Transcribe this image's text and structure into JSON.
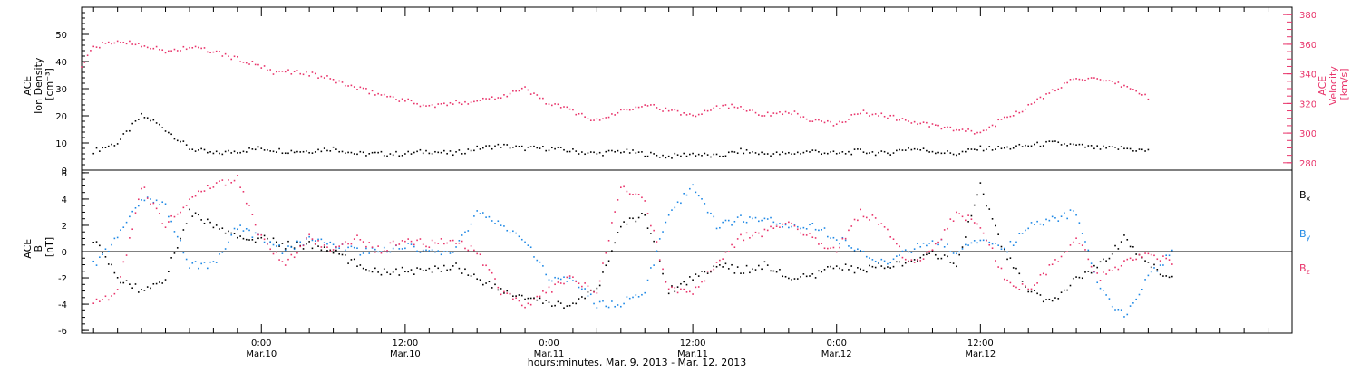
{
  "chart_data": [
    {
      "type": "scatter",
      "panel": "plasma",
      "y_label_lines": [
        "ACE",
        "Ion Density",
        "[cm⁻³]"
      ],
      "y2_label_lines": [
        "ACE",
        "Velocity",
        "[km/s]"
      ],
      "ylim": [
        0,
        60
      ],
      "yticks": [
        0,
        10,
        20,
        30,
        40,
        50
      ],
      "y2lim": [
        275,
        385
      ],
      "y2ticks": [
        280,
        300,
        320,
        340,
        360,
        380
      ],
      "series": [
        {
          "axis": "left",
          "color": "#000000",
          "points": [
            [
              -14,
              7
            ],
            [
              -12,
              10
            ],
            [
              -10,
              20
            ],
            [
              -9,
              18
            ],
            [
              -8,
              15
            ],
            [
              -6,
              8
            ],
            [
              -4,
              6
            ],
            [
              -2,
              7
            ],
            [
              0,
              8
            ],
            [
              2,
              7
            ],
            [
              4,
              7
            ],
            [
              6,
              8
            ],
            [
              8,
              6
            ],
            [
              10,
              6
            ],
            [
              12,
              6
            ],
            [
              14,
              7
            ],
            [
              16,
              6
            ],
            [
              18,
              8
            ],
            [
              20,
              9
            ],
            [
              22,
              8
            ],
            [
              24,
              8
            ],
            [
              26,
              7
            ],
            [
              28,
              6
            ],
            [
              30,
              7
            ],
            [
              32,
              6
            ],
            [
              34,
              5
            ],
            [
              36,
              6
            ],
            [
              38,
              5
            ],
            [
              40,
              7
            ],
            [
              42,
              6
            ],
            [
              44,
              6
            ],
            [
              46,
              7
            ],
            [
              48,
              6
            ],
            [
              50,
              7
            ],
            [
              52,
              6
            ],
            [
              54,
              8
            ],
            [
              56,
              7
            ],
            [
              58,
              6
            ],
            [
              60,
              8
            ],
            [
              62,
              8
            ],
            [
              64,
              9
            ],
            [
              66,
              10
            ],
            [
              68,
              9
            ],
            [
              70,
              8
            ],
            [
              72,
              8
            ],
            [
              74,
              7
            ]
          ]
        },
        {
          "axis": "right",
          "color": "#e8336a",
          "points": [
            [
              -15,
              345
            ],
            [
              -14,
              358
            ],
            [
              -12,
              362
            ],
            [
              -10,
              360
            ],
            [
              -8,
              355
            ],
            [
              -6,
              358
            ],
            [
              -4,
              355
            ],
            [
              -2,
              350
            ],
            [
              0,
              345
            ],
            [
              1,
              340
            ],
            [
              2,
              342
            ],
            [
              4,
              340
            ],
            [
              6,
              336
            ],
            [
              8,
              330
            ],
            [
              10,
              326
            ],
            [
              12,
              322
            ],
            [
              14,
              318
            ],
            [
              16,
              320
            ],
            [
              18,
              322
            ],
            [
              20,
              325
            ],
            [
              22,
              330
            ],
            [
              24,
              320
            ],
            [
              26,
              315
            ],
            [
              28,
              308
            ],
            [
              30,
              315
            ],
            [
              32,
              320
            ],
            [
              34,
              315
            ],
            [
              36,
              312
            ],
            [
              38,
              318
            ],
            [
              40,
              318
            ],
            [
              42,
              312
            ],
            [
              44,
              315
            ],
            [
              46,
              308
            ],
            [
              48,
              306
            ],
            [
              50,
              314
            ],
            [
              52,
              312
            ],
            [
              54,
              308
            ],
            [
              56,
              305
            ],
            [
              58,
              302
            ],
            [
              60,
              300
            ],
            [
              62,
              310
            ],
            [
              64,
              318
            ],
            [
              66,
              328
            ],
            [
              68,
              338
            ],
            [
              70,
              335
            ],
            [
              72,
              332
            ],
            [
              74,
              324
            ]
          ]
        }
      ]
    },
    {
      "type": "scatter",
      "panel": "magnetic",
      "y_label_lines": [
        "ACE",
        "B",
        "[nT]"
      ],
      "ylim": [
        -6.2,
        6.2
      ],
      "yticks": [
        -6,
        -4,
        -2,
        0,
        2,
        4,
        6
      ],
      "zero_line": true,
      "series": [
        {
          "name": "Bx",
          "color": "#000000",
          "points": [
            [
              -14,
              1
            ],
            [
              -12,
              -2
            ],
            [
              -10,
              -3
            ],
            [
              -8,
              -2
            ],
            [
              -6,
              3
            ],
            [
              -4,
              2
            ],
            [
              -2,
              1
            ],
            [
              0,
              1
            ],
            [
              2,
              0.5
            ],
            [
              4,
              0.5
            ],
            [
              6,
              0
            ],
            [
              8,
              -1
            ],
            [
              10,
              -1.5
            ],
            [
              12,
              -1.5
            ],
            [
              14,
              -1.5
            ],
            [
              16,
              -1
            ],
            [
              18,
              -2
            ],
            [
              20,
              -3
            ],
            [
              22,
              -3.5
            ],
            [
              24,
              -4
            ],
            [
              26,
              -4
            ],
            [
              28,
              -3
            ],
            [
              30,
              2
            ],
            [
              32,
              2.8
            ],
            [
              34,
              -3
            ],
            [
              36,
              -2
            ],
            [
              38,
              -1
            ],
            [
              40,
              -1.5
            ],
            [
              42,
              -1
            ],
            [
              44,
              -2
            ],
            [
              46,
              -2
            ],
            [
              48,
              -1
            ],
            [
              50,
              -1.5
            ],
            [
              52,
              -1
            ],
            [
              54,
              -1
            ],
            [
              56,
              0
            ],
            [
              58,
              -1
            ],
            [
              60,
              5
            ],
            [
              62,
              0
            ],
            [
              64,
              -3
            ],
            [
              66,
              -4
            ],
            [
              68,
              -2
            ],
            [
              70,
              -1
            ],
            [
              72,
              1
            ],
            [
              74,
              -1
            ],
            [
              76,
              -2
            ]
          ]
        },
        {
          "name": "By",
          "color": "#1e88e5",
          "points": [
            [
              -14,
              -1
            ],
            [
              -12,
              1
            ],
            [
              -10,
              4
            ],
            [
              -8,
              3.5
            ],
            [
              -6,
              -1
            ],
            [
              -4,
              -1
            ],
            [
              -2,
              2
            ],
            [
              0,
              1
            ],
            [
              2,
              0
            ],
            [
              4,
              1
            ],
            [
              6,
              0.5
            ],
            [
              8,
              0
            ],
            [
              10,
              0
            ],
            [
              12,
              0.5
            ],
            [
              14,
              0
            ],
            [
              16,
              0
            ],
            [
              18,
              3
            ],
            [
              20,
              2
            ],
            [
              22,
              1
            ],
            [
              24,
              -2
            ],
            [
              26,
              -2
            ],
            [
              28,
              -4
            ],
            [
              30,
              -4
            ],
            [
              32,
              -3
            ],
            [
              34,
              3
            ],
            [
              36,
              5
            ],
            [
              38,
              2
            ],
            [
              40,
              2.5
            ],
            [
              42,
              2.5
            ],
            [
              44,
              2
            ],
            [
              46,
              2
            ],
            [
              48,
              1
            ],
            [
              50,
              0
            ],
            [
              52,
              -1
            ],
            [
              54,
              0
            ],
            [
              56,
              1
            ],
            [
              58,
              0
            ],
            [
              60,
              1
            ],
            [
              62,
              0
            ],
            [
              64,
              2
            ],
            [
              66,
              2.5
            ],
            [
              68,
              3
            ],
            [
              70,
              -3
            ],
            [
              72,
              -5
            ],
            [
              74,
              -2
            ],
            [
              76,
              0
            ]
          ]
        },
        {
          "name": "Bz",
          "color": "#e8336a",
          "points": [
            [
              -14,
              -4
            ],
            [
              -12,
              -3
            ],
            [
              -10,
              5
            ],
            [
              -8,
              2
            ],
            [
              -6,
              4
            ],
            [
              -4,
              5
            ],
            [
              -2,
              5.5
            ],
            [
              0,
              1
            ],
            [
              2,
              -1
            ],
            [
              4,
              1
            ],
            [
              6,
              0
            ],
            [
              8,
              1
            ],
            [
              10,
              0
            ],
            [
              12,
              1
            ],
            [
              14,
              0.5
            ],
            [
              16,
              1
            ],
            [
              18,
              0
            ],
            [
              20,
              -3
            ],
            [
              22,
              -4
            ],
            [
              24,
              -3
            ],
            [
              26,
              -2
            ],
            [
              28,
              -3
            ],
            [
              30,
              5
            ],
            [
              32,
              4
            ],
            [
              34,
              -3
            ],
            [
              36,
              -3
            ],
            [
              38,
              -1
            ],
            [
              40,
              1
            ],
            [
              42,
              1.5
            ],
            [
              44,
              2
            ],
            [
              46,
              1
            ],
            [
              48,
              0
            ],
            [
              50,
              3
            ],
            [
              52,
              2
            ],
            [
              54,
              -1
            ],
            [
              56,
              0
            ],
            [
              58,
              3
            ],
            [
              60,
              2
            ],
            [
              62,
              -2
            ],
            [
              64,
              -3
            ],
            [
              66,
              -1
            ],
            [
              68,
              1
            ],
            [
              70,
              -2
            ],
            [
              72,
              -1
            ],
            [
              74,
              0
            ],
            [
              76,
              -1
            ]
          ]
        }
      ]
    }
  ],
  "x_axis": {
    "xlim": [
      -15,
      86
    ],
    "ticks": [
      {
        "hour": 0,
        "time": "0:00",
        "date": "Mar.10"
      },
      {
        "hour": 12,
        "time": "12:00",
        "date": "Mar.10"
      },
      {
        "hour": 24,
        "time": "0:00",
        "date": "Mar.11"
      },
      {
        "hour": 36,
        "time": "12:00",
        "date": "Mar.11"
      },
      {
        "hour": 48,
        "time": "0:00",
        "date": "Mar.12"
      },
      {
        "hour": 60,
        "time": "12:00",
        "date": "Mar.12"
      }
    ],
    "label": "hours:minutes, Mar. 9, 2013 - Mar. 12, 2013"
  },
  "legend": [
    {
      "base": "B",
      "sub": "x",
      "color": "#000000"
    },
    {
      "base": "B",
      "sub": "y",
      "color": "#1e88e5"
    },
    {
      "base": "B",
      "sub": "z",
      "color": "#e8336a"
    }
  ]
}
